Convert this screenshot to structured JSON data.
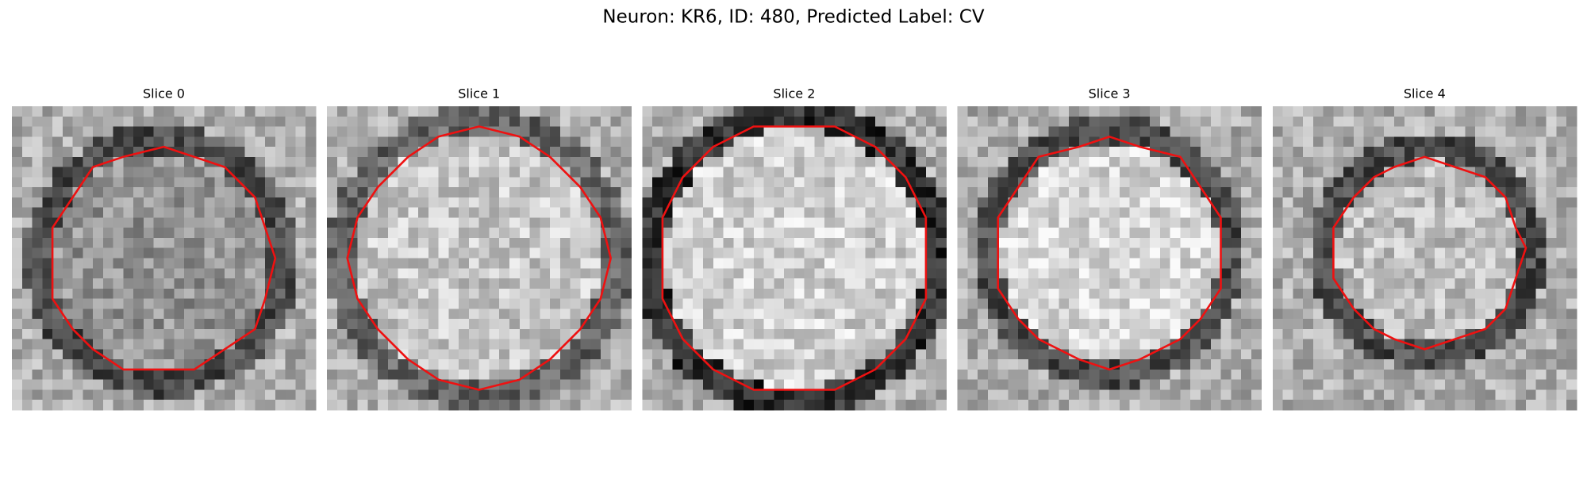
{
  "title": "Neuron: KR6, ID: 480, Predicted Label: CV",
  "panels": [
    {
      "title": "Slice 0"
    },
    {
      "title": "Slice 1"
    },
    {
      "title": "Slice 2"
    },
    {
      "title": "Slice 3"
    },
    {
      "title": "Slice 4"
    }
  ]
}
